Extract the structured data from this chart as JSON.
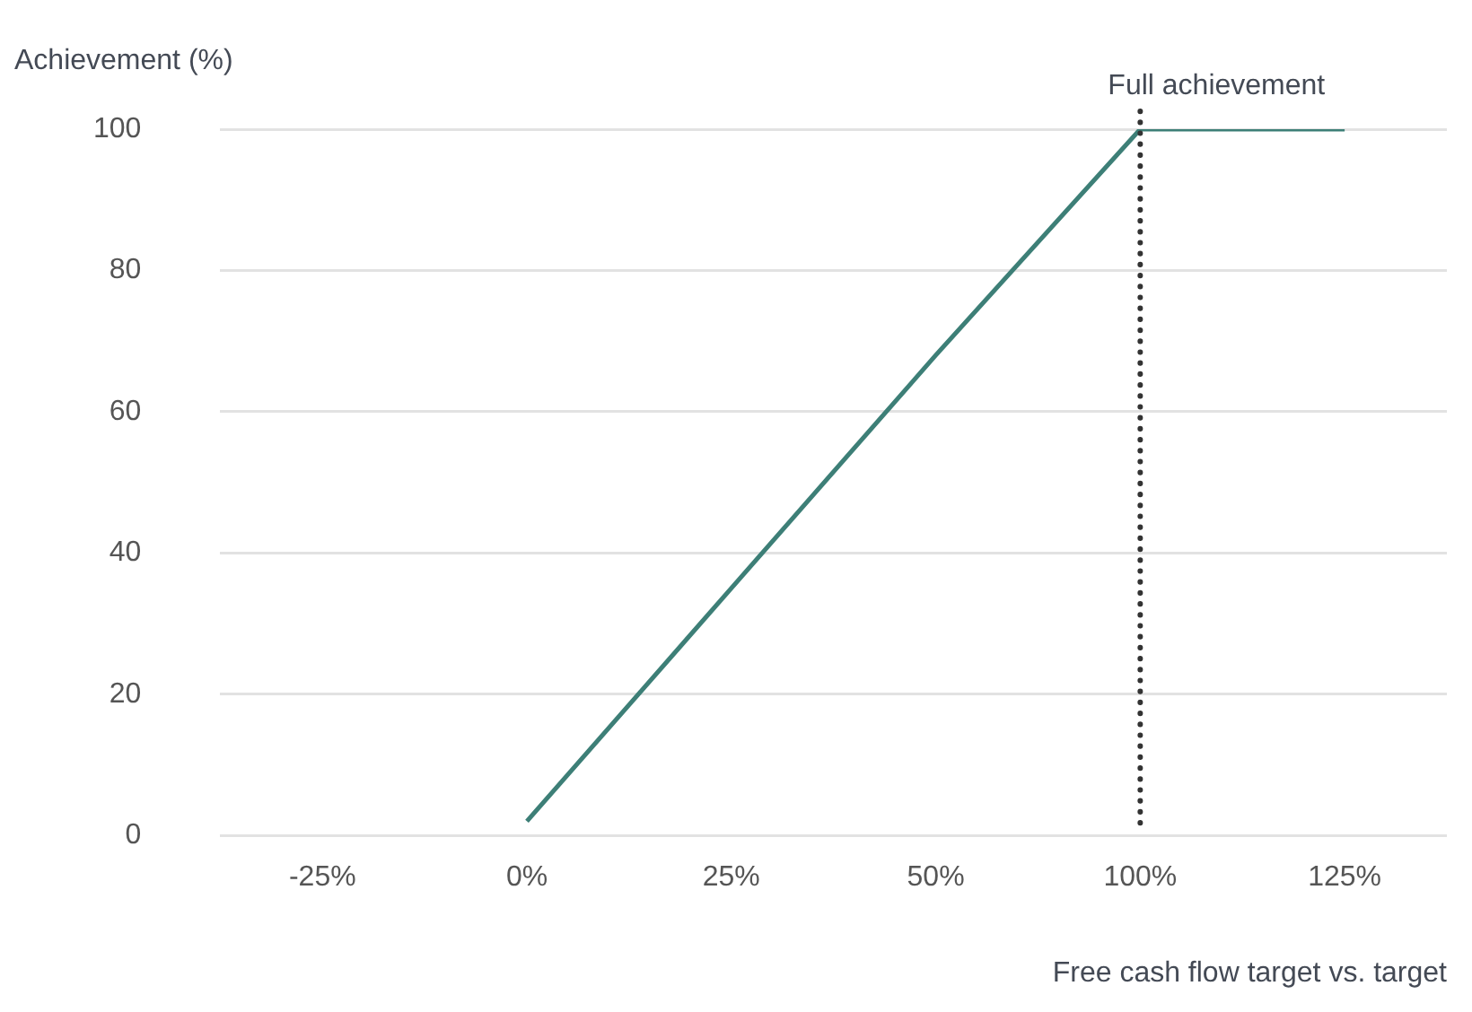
{
  "chart_data": {
    "type": "line",
    "ylabel": "Achievement (%)",
    "xlabel": "Free cash flow target vs. target",
    "categories": [
      "-25%",
      "0%",
      "25%",
      "50%",
      "100%",
      "125%"
    ],
    "series": [
      {
        "color": "#3d7f77",
        "values": [
          null,
          2,
          35,
          68,
          100,
          100
        ]
      }
    ],
    "ylim": [
      0,
      100
    ],
    "yticks": [
      0,
      20,
      40,
      60,
      80,
      100
    ],
    "grid": "y",
    "legend": false,
    "marker": "none",
    "line_style": "solid",
    "ref_lines": [
      {
        "axis": "x",
        "value": "100%",
        "label": "Full achievement",
        "color": "#333333",
        "line_style": "dotted"
      }
    ]
  }
}
